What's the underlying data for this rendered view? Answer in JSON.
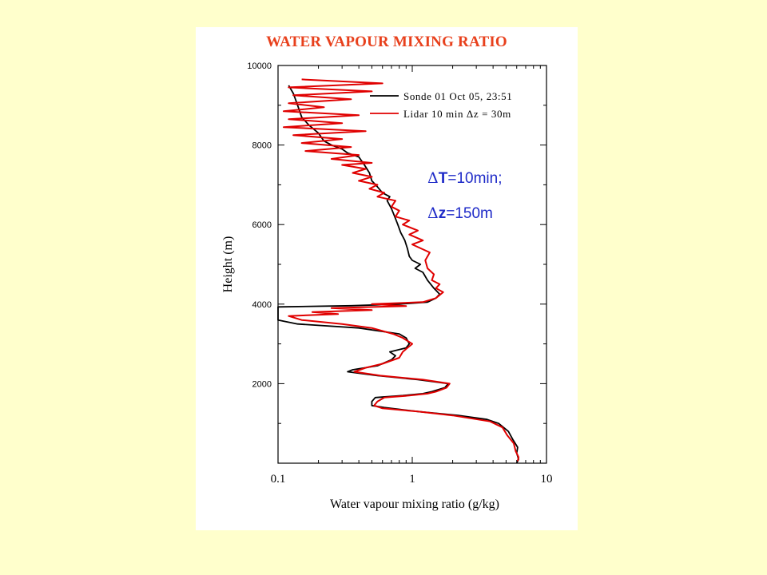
{
  "chart_data": {
    "type": "line",
    "title": "WATER VAPOUR MIXING RATIO",
    "xlabel": "Water vapour mixing ratio (g/kg)",
    "ylabel": "Height (m)",
    "xscale": "log",
    "xlim": [
      0.1,
      10
    ],
    "ylim": [
      0,
      10000
    ],
    "xticks": [
      0.1,
      1,
      10
    ],
    "xtick_labels": [
      "0.1",
      "1",
      "10"
    ],
    "yticks": [
      2000,
      4000,
      6000,
      8000,
      10000
    ],
    "ytick_labels": [
      "2000",
      "4000",
      "6000",
      "8000",
      "10000"
    ],
    "grid": false,
    "legend_position": "top-right",
    "annotation_lines": [
      {
        "symbol": "Δ",
        "var": "T",
        "rest": "=10min;"
      },
      {
        "symbol": "Δ",
        "var": "z",
        "rest": "=150m"
      }
    ],
    "series": [
      {
        "name": "Sonde 01 Oct 05, 23:51",
        "color": "#000000",
        "points": [
          [
            6.0,
            0
          ],
          [
            6.2,
            100
          ],
          [
            6.0,
            250
          ],
          [
            6.1,
            400
          ],
          [
            5.6,
            600
          ],
          [
            5.2,
            800
          ],
          [
            4.4,
            1000
          ],
          [
            3.6,
            1100
          ],
          [
            2.2,
            1200
          ],
          [
            1.1,
            1300
          ],
          [
            0.62,
            1400
          ],
          [
            0.5,
            1450
          ],
          [
            0.5,
            1550
          ],
          [
            0.53,
            1650
          ],
          [
            0.85,
            1700
          ],
          [
            1.2,
            1750
          ],
          [
            1.4,
            1800
          ],
          [
            1.75,
            1900
          ],
          [
            1.85,
            2000
          ],
          [
            1.1,
            2100
          ],
          [
            0.55,
            2200
          ],
          [
            0.33,
            2300
          ],
          [
            0.36,
            2350
          ],
          [
            0.55,
            2450
          ],
          [
            0.7,
            2600
          ],
          [
            0.75,
            2700
          ],
          [
            0.68,
            2800
          ],
          [
            0.9,
            2900
          ],
          [
            0.95,
            3000
          ],
          [
            0.9,
            3150
          ],
          [
            0.8,
            3250
          ],
          [
            0.4,
            3400
          ],
          [
            0.14,
            3500
          ],
          [
            0.1,
            3600
          ],
          [
            0.1,
            3800
          ],
          [
            0.1,
            3930
          ],
          [
            0.35,
            3960
          ],
          [
            0.8,
            4000
          ],
          [
            1.3,
            4050
          ],
          [
            1.5,
            4150
          ],
          [
            1.6,
            4250
          ],
          [
            1.45,
            4400
          ],
          [
            1.3,
            4600
          ],
          [
            1.2,
            4800
          ],
          [
            1.05,
            4900
          ],
          [
            1.15,
            5000
          ],
          [
            1.0,
            5100
          ],
          [
            0.95,
            5200
          ],
          [
            0.92,
            5400
          ],
          [
            0.88,
            5600
          ],
          [
            0.82,
            5800
          ],
          [
            0.78,
            6000
          ],
          [
            0.74,
            6200
          ],
          [
            0.7,
            6400
          ],
          [
            0.65,
            6600
          ],
          [
            0.68,
            6700
          ],
          [
            0.6,
            6800
          ],
          [
            0.55,
            6950
          ],
          [
            0.5,
            7100
          ],
          [
            0.48,
            7300
          ],
          [
            0.44,
            7500
          ],
          [
            0.4,
            7700
          ],
          [
            0.33,
            7800
          ],
          [
            0.3,
            7900
          ],
          [
            0.25,
            8000
          ],
          [
            0.22,
            8100
          ],
          [
            0.2,
            8300
          ],
          [
            0.17,
            8500
          ],
          [
            0.15,
            8700
          ],
          [
            0.14,
            9000
          ],
          [
            0.13,
            9300
          ],
          [
            0.12,
            9500
          ]
        ]
      },
      {
        "name": "Lidar 10 min Δz = 30m",
        "color": "#E00000",
        "points": [
          [
            6.1,
            50
          ],
          [
            6.2,
            150
          ],
          [
            5.9,
            300
          ],
          [
            5.7,
            500
          ],
          [
            5.1,
            700
          ],
          [
            4.7,
            900
          ],
          [
            3.8,
            1050
          ],
          [
            2.0,
            1200
          ],
          [
            1.1,
            1300
          ],
          [
            0.6,
            1380
          ],
          [
            0.52,
            1450
          ],
          [
            0.55,
            1550
          ],
          [
            0.62,
            1650
          ],
          [
            0.95,
            1700
          ],
          [
            1.3,
            1750
          ],
          [
            1.5,
            1800
          ],
          [
            1.8,
            1900
          ],
          [
            1.9,
            2000
          ],
          [
            1.2,
            2100
          ],
          [
            0.58,
            2200
          ],
          [
            0.37,
            2300
          ],
          [
            0.45,
            2400
          ],
          [
            0.6,
            2500
          ],
          [
            0.8,
            2650
          ],
          [
            0.85,
            2800
          ],
          [
            0.92,
            2900
          ],
          [
            1.0,
            3000
          ],
          [
            0.85,
            3150
          ],
          [
            0.72,
            3250
          ],
          [
            0.5,
            3400
          ],
          [
            0.3,
            3500
          ],
          [
            0.15,
            3600
          ],
          [
            0.12,
            3700
          ],
          [
            0.28,
            3750
          ],
          [
            0.18,
            3800
          ],
          [
            0.5,
            3850
          ],
          [
            0.25,
            3900
          ],
          [
            0.9,
            3950
          ],
          [
            0.5,
            4000
          ],
          [
            1.2,
            4050
          ],
          [
            1.5,
            4150
          ],
          [
            1.7,
            4300
          ],
          [
            1.5,
            4400
          ],
          [
            1.6,
            4500
          ],
          [
            1.4,
            4600
          ],
          [
            1.45,
            4750
          ],
          [
            1.3,
            4900
          ],
          [
            1.25,
            5100
          ],
          [
            1.35,
            5300
          ],
          [
            1.0,
            5500
          ],
          [
            1.2,
            5600
          ],
          [
            0.95,
            5750
          ],
          [
            1.1,
            5850
          ],
          [
            0.85,
            6000
          ],
          [
            0.95,
            6100
          ],
          [
            0.75,
            6200
          ],
          [
            0.8,
            6350
          ],
          [
            0.7,
            6450
          ],
          [
            0.75,
            6600
          ],
          [
            0.55,
            6700
          ],
          [
            0.62,
            6800
          ],
          [
            0.48,
            6900
          ],
          [
            0.55,
            7000
          ],
          [
            0.4,
            7100
          ],
          [
            0.5,
            7200
          ],
          [
            0.36,
            7300
          ],
          [
            0.45,
            7400
          ],
          [
            0.3,
            7500
          ],
          [
            0.5,
            7550
          ],
          [
            0.25,
            7650
          ],
          [
            0.4,
            7750
          ],
          [
            0.16,
            7850
          ],
          [
            0.35,
            7950
          ],
          [
            0.15,
            8050
          ],
          [
            0.3,
            8150
          ],
          [
            0.13,
            8250
          ],
          [
            0.45,
            8350
          ],
          [
            0.11,
            8450
          ],
          [
            0.3,
            8550
          ],
          [
            0.12,
            8650
          ],
          [
            0.4,
            8750
          ],
          [
            0.11,
            8850
          ],
          [
            0.22,
            8950
          ],
          [
            0.12,
            9050
          ],
          [
            0.35,
            9150
          ],
          [
            0.13,
            9250
          ],
          [
            0.5,
            9350
          ],
          [
            0.12,
            9450
          ],
          [
            0.6,
            9550
          ],
          [
            0.15,
            9650
          ]
        ]
      }
    ]
  }
}
